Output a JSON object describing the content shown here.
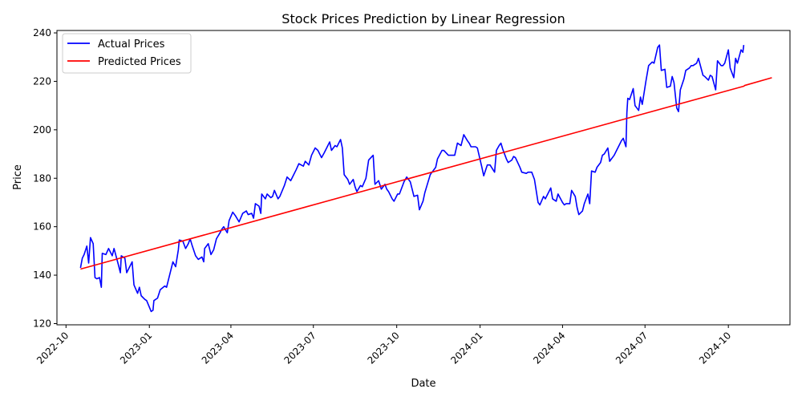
{
  "chart_data": {
    "type": "line",
    "title": "Stock Prices Prediction by Linear Regression",
    "xlabel": "Date",
    "ylabel": "Price",
    "xlim": [
      "2022-09-21",
      "2024-12-08"
    ],
    "ylim": [
      119.5,
      241
    ],
    "x_ticks": [
      "2022-10-01",
      "2023-01-01",
      "2023-04-01",
      "2023-07-01",
      "2023-10-01",
      "2024-01-01",
      "2024-04-01",
      "2024-07-01",
      "2024-10-01"
    ],
    "x_tick_labels": [
      "2022-10",
      "2023-01",
      "2023-04",
      "2023-07",
      "2023-10",
      "2024-01",
      "2024-04",
      "2024-07",
      "2024-10"
    ],
    "y_ticks": [
      120,
      140,
      160,
      180,
      200,
      220,
      240
    ],
    "y_tick_labels": [
      "120",
      "140",
      "160",
      "180",
      "200",
      "220",
      "240"
    ],
    "legend": {
      "placement": "top-left"
    },
    "grid": false,
    "series": [
      {
        "name": "Actual Prices",
        "color": "#0000ff",
        "points": [
          [
            "2022-10-17",
            143
          ],
          [
            "2022-10-19",
            147
          ],
          [
            "2022-10-21",
            148.5
          ],
          [
            "2022-10-24",
            152
          ],
          [
            "2022-10-26",
            145
          ],
          [
            "2022-10-28",
            155.5
          ],
          [
            "2022-10-31",
            153
          ],
          [
            "2022-11-02",
            139
          ],
          [
            "2022-11-04",
            138.5
          ],
          [
            "2022-11-07",
            139
          ],
          [
            "2022-11-09",
            135
          ],
          [
            "2022-11-10",
            149
          ],
          [
            "2022-11-14",
            148.5
          ],
          [
            "2022-11-17",
            151
          ],
          [
            "2022-11-21",
            148
          ],
          [
            "2022-11-23",
            151
          ],
          [
            "2022-11-28",
            144
          ],
          [
            "2022-11-30",
            141
          ],
          [
            "2022-12-01",
            148
          ],
          [
            "2022-12-05",
            147
          ],
          [
            "2022-12-07",
            141
          ],
          [
            "2022-12-09",
            142.5
          ],
          [
            "2022-12-13",
            145.5
          ],
          [
            "2022-12-15",
            136
          ],
          [
            "2022-12-19",
            132.5
          ],
          [
            "2022-12-21",
            135
          ],
          [
            "2022-12-23",
            131.5
          ],
          [
            "2022-12-27",
            130
          ],
          [
            "2022-12-29",
            129.5
          ],
          [
            "2023-01-03",
            125
          ],
          [
            "2023-01-05",
            125.5
          ],
          [
            "2023-01-06",
            129.5
          ],
          [
            "2023-01-10",
            130.5
          ],
          [
            "2023-01-13",
            134
          ],
          [
            "2023-01-18",
            135.5
          ],
          [
            "2023-01-20",
            135
          ],
          [
            "2023-01-24",
            141
          ],
          [
            "2023-01-27",
            145.5
          ],
          [
            "2023-01-30",
            143.5
          ],
          [
            "2023-02-02",
            150.5
          ],
          [
            "2023-02-03",
            154.5
          ],
          [
            "2023-02-07",
            154
          ],
          [
            "2023-02-10",
            151
          ],
          [
            "2023-02-13",
            153
          ],
          [
            "2023-02-15",
            155
          ],
          [
            "2023-02-17",
            152.5
          ],
          [
            "2023-02-21",
            148
          ],
          [
            "2023-02-24",
            146.5
          ],
          [
            "2023-02-28",
            147.5
          ],
          [
            "2023-03-02",
            145.5
          ],
          [
            "2023-03-03",
            151
          ],
          [
            "2023-03-07",
            153
          ],
          [
            "2023-03-10",
            148.5
          ],
          [
            "2023-03-13",
            150.5
          ],
          [
            "2023-03-16",
            155
          ],
          [
            "2023-03-20",
            157.5
          ],
          [
            "2023-03-22",
            159
          ],
          [
            "2023-03-24",
            160
          ],
          [
            "2023-03-28",
            157.5
          ],
          [
            "2023-03-30",
            162.5
          ],
          [
            "2023-04-03",
            166
          ],
          [
            "2023-04-06",
            164.5
          ],
          [
            "2023-04-10",
            162
          ],
          [
            "2023-04-14",
            165.5
          ],
          [
            "2023-04-18",
            166.5
          ],
          [
            "2023-04-20",
            165
          ],
          [
            "2023-04-24",
            165.5
          ],
          [
            "2023-04-26",
            163.5
          ],
          [
            "2023-04-28",
            169.5
          ],
          [
            "2023-05-02",
            168.5
          ],
          [
            "2023-05-04",
            165.5
          ],
          [
            "2023-05-05",
            173.5
          ],
          [
            "2023-05-09",
            171.5
          ],
          [
            "2023-05-11",
            173.5
          ],
          [
            "2023-05-15",
            172
          ],
          [
            "2023-05-17",
            172.5
          ],
          [
            "2023-05-19",
            175
          ],
          [
            "2023-05-23",
            171.5
          ],
          [
            "2023-05-25",
            172.5
          ],
          [
            "2023-05-30",
            177
          ],
          [
            "2023-06-02",
            180.5
          ],
          [
            "2023-06-06",
            179
          ],
          [
            "2023-06-08",
            180.5
          ],
          [
            "2023-06-12",
            183.5
          ],
          [
            "2023-06-15",
            186
          ],
          [
            "2023-06-20",
            185
          ],
          [
            "2023-06-22",
            187
          ],
          [
            "2023-06-26",
            185.5
          ],
          [
            "2023-06-29",
            189.5
          ],
          [
            "2023-07-03",
            192.5
          ],
          [
            "2023-07-06",
            191.5
          ],
          [
            "2023-07-10",
            188.5
          ],
          [
            "2023-07-13",
            190.5
          ],
          [
            "2023-07-17",
            193.5
          ],
          [
            "2023-07-19",
            195
          ],
          [
            "2023-07-21",
            191.5
          ],
          [
            "2023-07-25",
            193.5
          ],
          [
            "2023-07-27",
            193
          ],
          [
            "2023-07-31",
            196
          ],
          [
            "2023-08-02",
            192.5
          ],
          [
            "2023-08-04",
            181.5
          ],
          [
            "2023-08-08",
            179.5
          ],
          [
            "2023-08-10",
            177.5
          ],
          [
            "2023-08-14",
            179.5
          ],
          [
            "2023-08-16",
            176.5
          ],
          [
            "2023-08-18",
            174.5
          ],
          [
            "2023-08-22",
            177
          ],
          [
            "2023-08-24",
            176.5
          ],
          [
            "2023-08-28",
            180
          ],
          [
            "2023-08-31",
            187.5
          ],
          [
            "2023-09-05",
            189.5
          ],
          [
            "2023-09-07",
            177.5
          ],
          [
            "2023-09-11",
            179
          ],
          [
            "2023-09-14",
            175.5
          ],
          [
            "2023-09-18",
            177.5
          ],
          [
            "2023-09-20",
            175.5
          ],
          [
            "2023-09-22",
            174.5
          ],
          [
            "2023-09-26",
            171.5
          ],
          [
            "2023-09-28",
            170.5
          ],
          [
            "2023-10-02",
            173.5
          ],
          [
            "2023-10-04",
            173.5
          ],
          [
            "2023-10-09",
            178.5
          ],
          [
            "2023-10-12",
            180.5
          ],
          [
            "2023-10-16",
            178.5
          ],
          [
            "2023-10-18",
            175.5
          ],
          [
            "2023-10-20",
            172.5
          ],
          [
            "2023-10-24",
            173
          ],
          [
            "2023-10-26",
            167
          ],
          [
            "2023-10-30",
            170.5
          ],
          [
            "2023-11-01",
            174
          ],
          [
            "2023-11-03",
            176.5
          ],
          [
            "2023-11-07",
            181.5
          ],
          [
            "2023-11-09",
            182.5
          ],
          [
            "2023-11-13",
            184.5
          ],
          [
            "2023-11-15",
            188
          ],
          [
            "2023-11-20",
            191.5
          ],
          [
            "2023-11-22",
            191.5
          ],
          [
            "2023-11-27",
            189.5
          ],
          [
            "2023-11-30",
            189.5
          ],
          [
            "2023-12-04",
            189.5
          ],
          [
            "2023-12-07",
            194.5
          ],
          [
            "2023-12-11",
            193.5
          ],
          [
            "2023-12-14",
            198
          ],
          [
            "2023-12-18",
            195.5
          ],
          [
            "2023-12-20",
            194.5
          ],
          [
            "2023-12-22",
            193
          ],
          [
            "2023-12-27",
            193
          ],
          [
            "2023-12-29",
            192.5
          ],
          [
            "2024-01-03",
            184.5
          ],
          [
            "2024-01-05",
            181
          ],
          [
            "2024-01-09",
            185.5
          ],
          [
            "2024-01-12",
            185.5
          ],
          [
            "2024-01-17",
            182.5
          ],
          [
            "2024-01-19",
            191.5
          ],
          [
            "2024-01-22",
            193.5
          ],
          [
            "2024-01-24",
            194.5
          ],
          [
            "2024-01-26",
            192
          ],
          [
            "2024-01-30",
            188
          ],
          [
            "2024-02-01",
            186.5
          ],
          [
            "2024-02-05",
            187.5
          ],
          [
            "2024-02-07",
            189
          ],
          [
            "2024-02-09",
            188.5
          ],
          [
            "2024-02-14",
            184.5
          ],
          [
            "2024-02-16",
            182.5
          ],
          [
            "2024-02-21",
            182
          ],
          [
            "2024-02-23",
            182.5
          ],
          [
            "2024-02-27",
            182.5
          ],
          [
            "2024-03-01",
            179.5
          ],
          [
            "2024-03-05",
            170
          ],
          [
            "2024-03-07",
            169
          ],
          [
            "2024-03-11",
            172.5
          ],
          [
            "2024-03-13",
            171.5
          ],
          [
            "2024-03-15",
            173
          ],
          [
            "2024-03-19",
            176
          ],
          [
            "2024-03-21",
            171.5
          ],
          [
            "2024-03-25",
            170.5
          ],
          [
            "2024-03-27",
            173.5
          ],
          [
            "2024-04-01",
            170
          ],
          [
            "2024-04-03",
            169
          ],
          [
            "2024-04-05",
            169.5
          ],
          [
            "2024-04-09",
            169.5
          ],
          [
            "2024-04-11",
            175
          ],
          [
            "2024-04-15",
            172.5
          ],
          [
            "2024-04-17",
            168
          ],
          [
            "2024-04-19",
            165
          ],
          [
            "2024-04-23",
            166.5
          ],
          [
            "2024-04-25",
            169.5
          ],
          [
            "2024-04-29",
            173.5
          ],
          [
            "2024-05-01",
            169.5
          ],
          [
            "2024-05-03",
            183
          ],
          [
            "2024-05-07",
            182.5
          ],
          [
            "2024-05-09",
            184.5
          ],
          [
            "2024-05-13",
            186.5
          ],
          [
            "2024-05-15",
            189.5
          ],
          [
            "2024-05-17",
            190
          ],
          [
            "2024-05-21",
            192.5
          ],
          [
            "2024-05-23",
            187
          ],
          [
            "2024-05-28",
            189.5
          ],
          [
            "2024-05-30",
            191
          ],
          [
            "2024-06-03",
            194
          ],
          [
            "2024-06-05",
            195.5
          ],
          [
            "2024-06-07",
            196.5
          ],
          [
            "2024-06-10",
            193
          ],
          [
            "2024-06-11",
            207
          ],
          [
            "2024-06-12",
            213
          ],
          [
            "2024-06-14",
            212.5
          ],
          [
            "2024-06-18",
            217
          ],
          [
            "2024-06-20",
            210
          ],
          [
            "2024-06-24",
            208
          ],
          [
            "2024-06-26",
            213.5
          ],
          [
            "2024-06-28",
            210.5
          ],
          [
            "2024-07-02",
            220
          ],
          [
            "2024-07-05",
            226.5
          ],
          [
            "2024-07-09",
            228
          ],
          [
            "2024-07-11",
            227.5
          ],
          [
            "2024-07-15",
            234
          ],
          [
            "2024-07-17",
            235
          ],
          [
            "2024-07-19",
            224.5
          ],
          [
            "2024-07-23",
            225
          ],
          [
            "2024-07-25",
            217.5
          ],
          [
            "2024-07-29",
            218
          ],
          [
            "2024-07-31",
            222
          ],
          [
            "2024-08-02",
            219.5
          ],
          [
            "2024-08-05",
            209
          ],
          [
            "2024-08-07",
            207.5
          ],
          [
            "2024-08-09",
            216.5
          ],
          [
            "2024-08-13",
            221
          ],
          [
            "2024-08-15",
            224.5
          ],
          [
            "2024-08-19",
            225.5
          ],
          [
            "2024-08-21",
            226.5
          ],
          [
            "2024-08-23",
            226.5
          ],
          [
            "2024-08-27",
            227.5
          ],
          [
            "2024-08-29",
            229.5
          ],
          [
            "2024-09-03",
            222.5
          ],
          [
            "2024-09-05",
            222
          ],
          [
            "2024-09-09",
            220.5
          ],
          [
            "2024-09-11",
            222.5
          ],
          [
            "2024-09-13",
            222
          ],
          [
            "2024-09-17",
            216.5
          ],
          [
            "2024-09-19",
            228.5
          ],
          [
            "2024-09-23",
            226.5
          ],
          [
            "2024-09-25",
            226.5
          ],
          [
            "2024-09-27",
            227.5
          ],
          [
            "2024-10-01",
            233
          ],
          [
            "2024-10-03",
            225.5
          ],
          [
            "2024-10-07",
            221.5
          ],
          [
            "2024-10-09",
            229.5
          ],
          [
            "2024-10-11",
            227.5
          ],
          [
            "2024-10-15",
            233
          ],
          [
            "2024-10-17",
            232
          ],
          [
            "2024-10-18",
            235
          ]
        ]
      },
      {
        "name": "Predicted Prices",
        "color": "#ff0000",
        "points": [
          [
            "2022-10-17",
            142.5
          ],
          [
            "2024-10-18",
            218
          ],
          [
            "2024-10-19",
            218.3
          ],
          [
            "2024-11-18",
            221.5
          ]
        ]
      }
    ]
  }
}
